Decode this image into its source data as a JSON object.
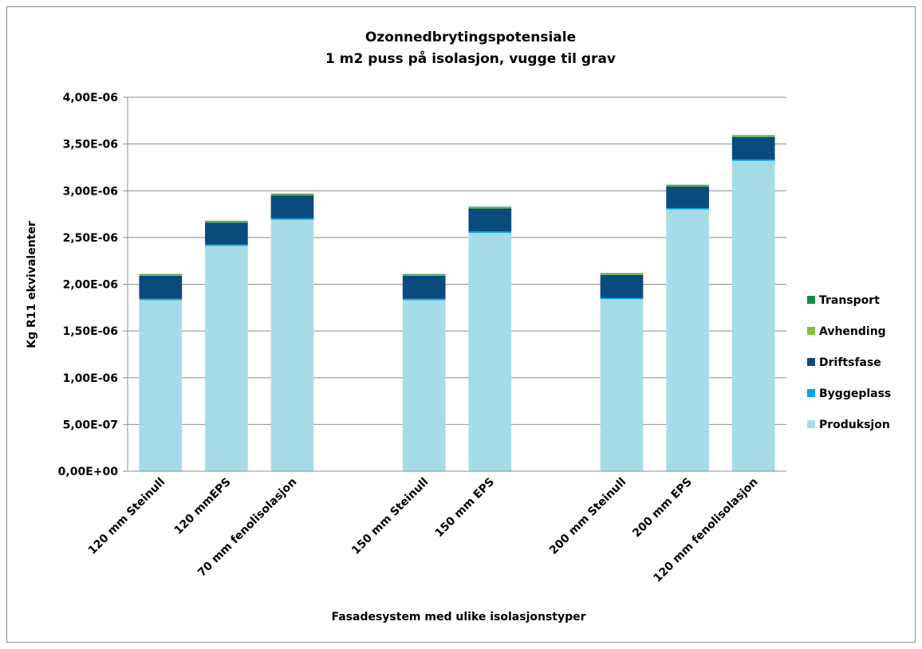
{
  "chart_data": {
    "type": "bar",
    "stacked": true,
    "title": [
      "Ozonnedbrytingspotensiale",
      "1 m2 puss på isolasjon, vugge til grav"
    ],
    "xlabel": "Fasadesystem med ulike isolasjonstyper",
    "ylabel": "Kg R11 ekvivalenter",
    "ylim": [
      0,
      4e-06
    ],
    "ytick_labels": [
      "0,00E+00",
      "5,00E-07",
      "1,00E-06",
      "1,50E-06",
      "2,00E-06",
      "2,50E-06",
      "3,00E-06",
      "3,50E-06",
      "4,00E-06"
    ],
    "grid": true,
    "legend": "right",
    "categories": [
      "120 mm Steinull",
      "120 mmEPS",
      "70 mm fenolisolasjon",
      "",
      "150 mm Steinull",
      "150 mm EPS",
      "",
      "200 mm Steinull",
      "200 mm EPS",
      "120 mm fenolisolasjon"
    ],
    "series": [
      {
        "name": "Produksjon",
        "color": "#a6dce8",
        "values": [
          1.83e-06,
          2.41e-06,
          2.69e-06,
          null,
          1.83e-06,
          2.55e-06,
          null,
          1.84e-06,
          2.8e-06,
          3.32e-06
        ]
      },
      {
        "name": "Byggeplass",
        "color": "#00a5e3",
        "values": [
          1.5e-08,
          1.5e-08,
          1.5e-08,
          null,
          1.5e-08,
          1.5e-08,
          null,
          1.5e-08,
          1.5e-08,
          1.5e-08
        ]
      },
      {
        "name": "Driftsfase",
        "color": "#0b4a7d",
        "values": [
          2.45e-07,
          2.35e-07,
          2.45e-07,
          null,
          2.45e-07,
          2.45e-07,
          null,
          2.45e-07,
          2.3e-07,
          2.4e-07
        ]
      },
      {
        "name": "Avhending",
        "color": "#7cc242",
        "values": [
          1.2e-08,
          1.2e-08,
          1.2e-08,
          null,
          1.2e-08,
          1.2e-08,
          null,
          1.2e-08,
          1.2e-08,
          1.2e-08
        ]
      },
      {
        "name": "Transport",
        "color": "#0e8a46",
        "values": [
          3e-09,
          3e-09,
          3e-09,
          null,
          3e-09,
          3e-09,
          null,
          3e-09,
          3e-09,
          3e-09
        ]
      }
    ],
    "legend_order": [
      "Transport",
      "Avhending",
      "Driftsfase",
      "Byggeplass",
      "Produksjon"
    ],
    "colors": {
      "grid": "#8c8c8c",
      "axis": "#8c8c8c"
    }
  }
}
